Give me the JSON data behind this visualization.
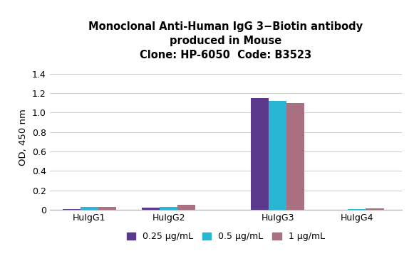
{
  "title_line1": "Monoclonal Anti-Human IgG 3−Biotin antibody",
  "title_line2": "produced in Mouse",
  "title_line3": "Clone: HP-6050  Code: B3523",
  "categories": [
    "HuIgG1",
    "HuIgG2",
    "HuIgG3",
    "HuIgG4"
  ],
  "series_labels": [
    "0.25 μg/mL",
    "0.5 μg/mL",
    "1 μg/mL"
  ],
  "series_colors": [
    "#5b3a8e",
    "#29b6d4",
    "#a87080"
  ],
  "values": [
    [
      0.008,
      0.03,
      0.032
    ],
    [
      0.022,
      0.03,
      0.052
    ],
    [
      1.15,
      1.12,
      1.1
    ],
    [
      0.0,
      0.01,
      0.018
    ]
  ],
  "ylabel": "OD, 450 nm",
  "ylim": [
    0,
    1.5
  ],
  "yticks": [
    0,
    0.2,
    0.4,
    0.6,
    0.8,
    1.0,
    1.2,
    1.4
  ],
  "bar_width": 0.18,
  "group_positions": [
    0.3,
    1.1,
    2.2,
    3.0
  ],
  "bg_color": "#ffffff",
  "grid_color": "#d0d0d0",
  "title_fontsize": 10.5,
  "axis_fontsize": 9.5,
  "tick_fontsize": 9,
  "legend_fontsize": 9
}
